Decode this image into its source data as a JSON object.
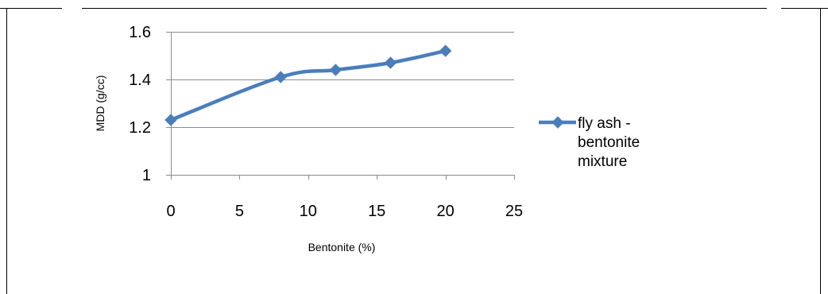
{
  "chart_data": {
    "type": "line",
    "title": "",
    "xlabel": "Bentonite (%)",
    "ylabel": "MDD (g/cc)",
    "xlim": [
      0,
      25
    ],
    "ylim": [
      1,
      1.6
    ],
    "xticks": [
      0,
      5,
      10,
      15,
      20,
      25
    ],
    "yticks": [
      1,
      1.2,
      1.4,
      1.6
    ],
    "xtick_labels": [
      "0",
      "5",
      "10",
      "15",
      "20",
      "25"
    ],
    "ytick_labels": [
      "1",
      "1.2",
      "1.4",
      "1.6"
    ],
    "grid": "horizontal",
    "legend_position": "right",
    "series": [
      {
        "name": "fly ash - bentonite mixture",
        "legend_lines": [
          "fly ash -",
          "bentonite",
          "mixture"
        ],
        "color": "#4a7ebb",
        "marker": "diamond",
        "smooth": true,
        "x": [
          0,
          8,
          12,
          16,
          20
        ],
        "y": [
          1.23,
          1.41,
          1.44,
          1.47,
          1.52
        ]
      }
    ]
  }
}
